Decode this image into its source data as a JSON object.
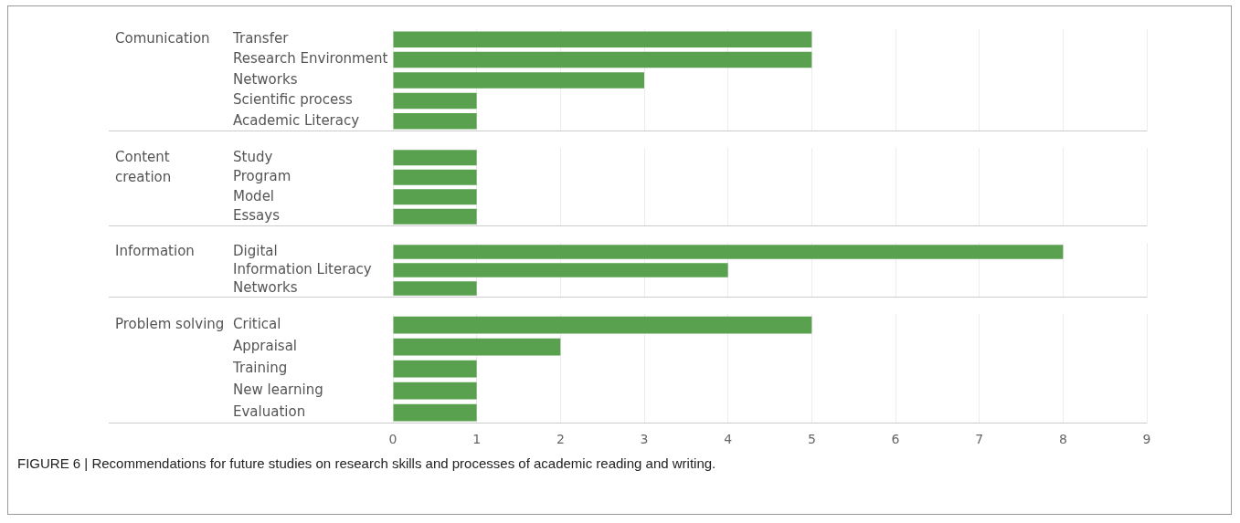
{
  "chart_data": [
    {
      "type": "bar",
      "orientation": "horizontal",
      "title": "Comunication",
      "categories": [
        "Transfer",
        "Research Environment",
        "Networks",
        "Scientific process",
        "Academic Literacy"
      ],
      "values": [
        5,
        5,
        3,
        1,
        1
      ],
      "color": "#59a14f",
      "xlim": [
        0,
        9
      ],
      "xticks": [
        0,
        1,
        2,
        3,
        4,
        5,
        6,
        7,
        8,
        9
      ],
      "grid": "x",
      "tick_labels": "y"
    },
    {
      "type": "bar",
      "orientation": "horizontal",
      "title": "Content creation",
      "categories": [
        "Study",
        "Program",
        "Model",
        "Essays"
      ],
      "values": [
        1,
        1,
        1,
        1
      ],
      "color": "#59a14f",
      "xlim": [
        0,
        9
      ],
      "xticks": [
        0,
        1,
        2,
        3,
        4,
        5,
        6,
        7,
        8,
        9
      ],
      "grid": "x",
      "tick_labels": "y"
    },
    {
      "type": "bar",
      "orientation": "horizontal",
      "title": "Information",
      "categories": [
        "Digital",
        "Information Literacy",
        "Networks"
      ],
      "values": [
        8,
        4,
        1
      ],
      "color": "#59a14f",
      "xlim": [
        0,
        9
      ],
      "xticks": [
        0,
        1,
        2,
        3,
        4,
        5,
        6,
        7,
        8,
        9
      ],
      "grid": "x",
      "tick_labels": "y"
    },
    {
      "type": "bar",
      "orientation": "horizontal",
      "title": "Problem solving",
      "categories": [
        "Critical",
        "Appraisal",
        "Training",
        "New learning",
        "Evaluation"
      ],
      "values": [
        5,
        2,
        1,
        1,
        1
      ],
      "color": "#59a14f",
      "xlim": [
        0,
        9
      ],
      "xticks": [
        0,
        1,
        2,
        3,
        4,
        5,
        6,
        7,
        8,
        9
      ],
      "grid": "x",
      "annotations": [
        "FIGURE 6 | Recommendations for future studies on research skills and processes of academic reading and writing."
      ]
    }
  ]
}
